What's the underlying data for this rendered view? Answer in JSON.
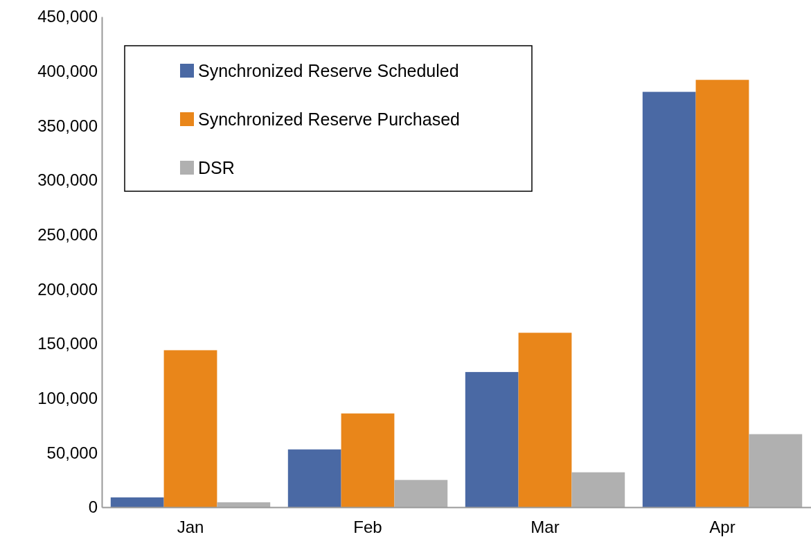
{
  "chart_data": {
    "type": "bar",
    "categories": [
      "Jan",
      "Feb",
      "Mar",
      "Apr"
    ],
    "series": [
      {
        "name": "Synchronized Reserve Scheduled",
        "color": "#4a69a4",
        "values": [
          9000,
          53000,
          124000,
          381000
        ]
      },
      {
        "name": "Synchronized Reserve Purchased",
        "color": "#e9861a",
        "values": [
          144000,
          86000,
          160000,
          392000
        ]
      },
      {
        "name": "DSR",
        "color": "#b0b0b0",
        "values": [
          4500,
          25000,
          32000,
          67000
        ]
      }
    ],
    "ylim": [
      0,
      450000
    ],
    "yticks": [
      {
        "value": 0,
        "label": "0"
      },
      {
        "value": 50000,
        "label": "50,000"
      },
      {
        "value": 100000,
        "label": "100,000"
      },
      {
        "value": 150000,
        "label": "150,000"
      },
      {
        "value": 200000,
        "label": "200,000"
      },
      {
        "value": 250000,
        "label": "250,000"
      },
      {
        "value": 300000,
        "label": "300,000"
      },
      {
        "value": 350000,
        "label": "350,000"
      },
      {
        "value": 400000,
        "label": "400,000"
      },
      {
        "value": 450000,
        "label": "450,000"
      }
    ],
    "grid": false,
    "legend": "top left"
  }
}
